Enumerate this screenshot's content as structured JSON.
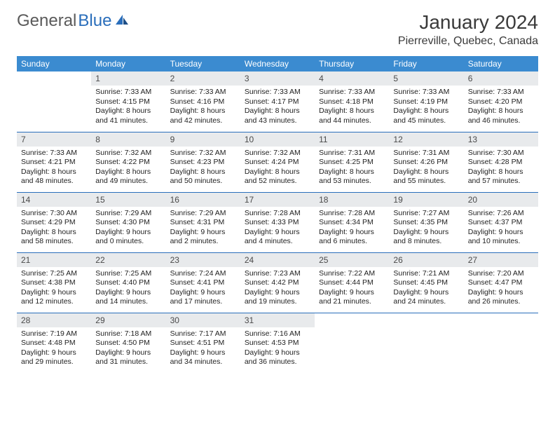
{
  "brand": {
    "word1": "General",
    "word2": "Blue"
  },
  "title": "January 2024",
  "location": "Pierreville, Quebec, Canada",
  "colors": {
    "header_bg": "#3b8bd0",
    "header_text": "#ffffff",
    "daynum_bg": "#e8eaec",
    "row_border": "#2a6ebb",
    "brand_gray": "#5a5a5a",
    "brand_blue": "#2a6ebb"
  },
  "weekdays": [
    "Sunday",
    "Monday",
    "Tuesday",
    "Wednesday",
    "Thursday",
    "Friday",
    "Saturday"
  ],
  "weeks": [
    [
      {
        "n": "",
        "sr": "",
        "ss": "",
        "dl": ""
      },
      {
        "n": "1",
        "sr": "Sunrise: 7:33 AM",
        "ss": "Sunset: 4:15 PM",
        "dl": "Daylight: 8 hours and 41 minutes."
      },
      {
        "n": "2",
        "sr": "Sunrise: 7:33 AM",
        "ss": "Sunset: 4:16 PM",
        "dl": "Daylight: 8 hours and 42 minutes."
      },
      {
        "n": "3",
        "sr": "Sunrise: 7:33 AM",
        "ss": "Sunset: 4:17 PM",
        "dl": "Daylight: 8 hours and 43 minutes."
      },
      {
        "n": "4",
        "sr": "Sunrise: 7:33 AM",
        "ss": "Sunset: 4:18 PM",
        "dl": "Daylight: 8 hours and 44 minutes."
      },
      {
        "n": "5",
        "sr": "Sunrise: 7:33 AM",
        "ss": "Sunset: 4:19 PM",
        "dl": "Daylight: 8 hours and 45 minutes."
      },
      {
        "n": "6",
        "sr": "Sunrise: 7:33 AM",
        "ss": "Sunset: 4:20 PM",
        "dl": "Daylight: 8 hours and 46 minutes."
      }
    ],
    [
      {
        "n": "7",
        "sr": "Sunrise: 7:33 AM",
        "ss": "Sunset: 4:21 PM",
        "dl": "Daylight: 8 hours and 48 minutes."
      },
      {
        "n": "8",
        "sr": "Sunrise: 7:32 AM",
        "ss": "Sunset: 4:22 PM",
        "dl": "Daylight: 8 hours and 49 minutes."
      },
      {
        "n": "9",
        "sr": "Sunrise: 7:32 AM",
        "ss": "Sunset: 4:23 PM",
        "dl": "Daylight: 8 hours and 50 minutes."
      },
      {
        "n": "10",
        "sr": "Sunrise: 7:32 AM",
        "ss": "Sunset: 4:24 PM",
        "dl": "Daylight: 8 hours and 52 minutes."
      },
      {
        "n": "11",
        "sr": "Sunrise: 7:31 AM",
        "ss": "Sunset: 4:25 PM",
        "dl": "Daylight: 8 hours and 53 minutes."
      },
      {
        "n": "12",
        "sr": "Sunrise: 7:31 AM",
        "ss": "Sunset: 4:26 PM",
        "dl": "Daylight: 8 hours and 55 minutes."
      },
      {
        "n": "13",
        "sr": "Sunrise: 7:30 AM",
        "ss": "Sunset: 4:28 PM",
        "dl": "Daylight: 8 hours and 57 minutes."
      }
    ],
    [
      {
        "n": "14",
        "sr": "Sunrise: 7:30 AM",
        "ss": "Sunset: 4:29 PM",
        "dl": "Daylight: 8 hours and 58 minutes."
      },
      {
        "n": "15",
        "sr": "Sunrise: 7:29 AM",
        "ss": "Sunset: 4:30 PM",
        "dl": "Daylight: 9 hours and 0 minutes."
      },
      {
        "n": "16",
        "sr": "Sunrise: 7:29 AM",
        "ss": "Sunset: 4:31 PM",
        "dl": "Daylight: 9 hours and 2 minutes."
      },
      {
        "n": "17",
        "sr": "Sunrise: 7:28 AM",
        "ss": "Sunset: 4:33 PM",
        "dl": "Daylight: 9 hours and 4 minutes."
      },
      {
        "n": "18",
        "sr": "Sunrise: 7:28 AM",
        "ss": "Sunset: 4:34 PM",
        "dl": "Daylight: 9 hours and 6 minutes."
      },
      {
        "n": "19",
        "sr": "Sunrise: 7:27 AM",
        "ss": "Sunset: 4:35 PM",
        "dl": "Daylight: 9 hours and 8 minutes."
      },
      {
        "n": "20",
        "sr": "Sunrise: 7:26 AM",
        "ss": "Sunset: 4:37 PM",
        "dl": "Daylight: 9 hours and 10 minutes."
      }
    ],
    [
      {
        "n": "21",
        "sr": "Sunrise: 7:25 AM",
        "ss": "Sunset: 4:38 PM",
        "dl": "Daylight: 9 hours and 12 minutes."
      },
      {
        "n": "22",
        "sr": "Sunrise: 7:25 AM",
        "ss": "Sunset: 4:40 PM",
        "dl": "Daylight: 9 hours and 14 minutes."
      },
      {
        "n": "23",
        "sr": "Sunrise: 7:24 AM",
        "ss": "Sunset: 4:41 PM",
        "dl": "Daylight: 9 hours and 17 minutes."
      },
      {
        "n": "24",
        "sr": "Sunrise: 7:23 AM",
        "ss": "Sunset: 4:42 PM",
        "dl": "Daylight: 9 hours and 19 minutes."
      },
      {
        "n": "25",
        "sr": "Sunrise: 7:22 AM",
        "ss": "Sunset: 4:44 PM",
        "dl": "Daylight: 9 hours and 21 minutes."
      },
      {
        "n": "26",
        "sr": "Sunrise: 7:21 AM",
        "ss": "Sunset: 4:45 PM",
        "dl": "Daylight: 9 hours and 24 minutes."
      },
      {
        "n": "27",
        "sr": "Sunrise: 7:20 AM",
        "ss": "Sunset: 4:47 PM",
        "dl": "Daylight: 9 hours and 26 minutes."
      }
    ],
    [
      {
        "n": "28",
        "sr": "Sunrise: 7:19 AM",
        "ss": "Sunset: 4:48 PM",
        "dl": "Daylight: 9 hours and 29 minutes."
      },
      {
        "n": "29",
        "sr": "Sunrise: 7:18 AM",
        "ss": "Sunset: 4:50 PM",
        "dl": "Daylight: 9 hours and 31 minutes."
      },
      {
        "n": "30",
        "sr": "Sunrise: 7:17 AM",
        "ss": "Sunset: 4:51 PM",
        "dl": "Daylight: 9 hours and 34 minutes."
      },
      {
        "n": "31",
        "sr": "Sunrise: 7:16 AM",
        "ss": "Sunset: 4:53 PM",
        "dl": "Daylight: 9 hours and 36 minutes."
      },
      {
        "n": "",
        "sr": "",
        "ss": "",
        "dl": ""
      },
      {
        "n": "",
        "sr": "",
        "ss": "",
        "dl": ""
      },
      {
        "n": "",
        "sr": "",
        "ss": "",
        "dl": ""
      }
    ]
  ]
}
